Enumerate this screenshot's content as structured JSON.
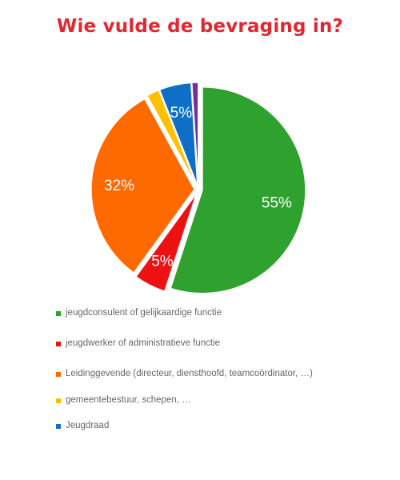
{
  "title": "Wie vulde de bevraging in?",
  "chart_data": {
    "type": "pie",
    "title": "Wie vulde de bevraging in?",
    "slices": [
      {
        "label": "jeugdconsulent of gelijkaardige functie",
        "value": 55,
        "display": "55%",
        "color": "#2ea12e"
      },
      {
        "label": "jeugdwerker of administratieve functie",
        "value": 5,
        "display": "5%",
        "color": "#ee1111"
      },
      {
        "label": "Leidinggevende (directeur, diensthoofd, teamcoördinator, …)",
        "value": 32,
        "display": "32%",
        "color": "#ff6a00"
      },
      {
        "label": "gemeentebestuur, schepen, …",
        "value": 2,
        "display": "",
        "color": "#ffc000"
      },
      {
        "label": "Jeugdraad",
        "value": 5,
        "display": "5%",
        "color": "#0f6fc6"
      },
      {
        "label": "",
        "value": 1,
        "display": "",
        "color": "#7030a0"
      }
    ],
    "legend_position": "bottom"
  },
  "legend": {
    "items": [
      {
        "label": "jeugdconsulent of gelijkaardige functie",
        "color": "#2ea12e"
      },
      {
        "label": "jeugdwerker of administratieve functie",
        "color": "#ee1111"
      },
      {
        "label": "Leidinggevende (directeur, diensthoofd, teamcoördinator, …)",
        "color": "#ff6a00"
      },
      {
        "label": "gemeentebestuur, schepen, …",
        "color": "#ffc000"
      },
      {
        "label": "Jeugdraad",
        "color": "#0f6fc6"
      }
    ]
  }
}
